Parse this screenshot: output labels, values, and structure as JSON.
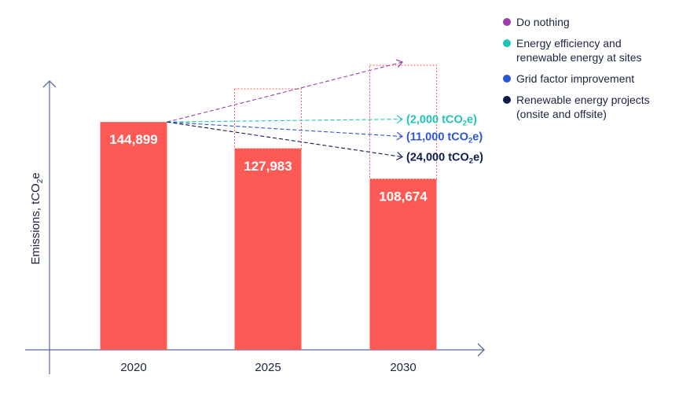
{
  "chart_data": {
    "type": "bar",
    "ylabel": "Emissions, tCO",
    "ylabel_sub": "2",
    "ylabel_suffix": "e",
    "categories": [
      "2020",
      "2025",
      "2030"
    ],
    "values": [
      144899,
      127983,
      108674
    ],
    "value_labels": [
      "144,899",
      "127,983",
      "108,674"
    ],
    "ylim": [
      0,
      175000
    ],
    "colors": {
      "bar": "#fe5a55",
      "axis": "#5b6b9a",
      "text": "#1c2440"
    },
    "projection_boxes": [
      {
        "category": "2025",
        "value": 166000
      },
      {
        "category": "2030",
        "value": 181000
      }
    ],
    "scenarios": [
      {
        "name": "Do nothing",
        "color": "#9b3fa8",
        "end_value": 183000,
        "saving_label": null
      },
      {
        "name": "Energy efficiency and renewable energy at sites",
        "color": "#1fc4b4",
        "end_value": 146700,
        "saving_label": {
          "pre": "(2,000 tCO",
          "sub": "2",
          "post": "e)"
        }
      },
      {
        "name": "Grid factor improvement",
        "color": "#2b55d9",
        "end_value": 135700,
        "saving_label": {
          "pre": "(11,000 tCO",
          "sub": "2",
          "post": "e)"
        }
      },
      {
        "name": "Renewable energy projects (onsite and offsite)",
        "color": "#0e1b4d",
        "end_value": 122700,
        "saving_label": {
          "pre": "(24,000 tCO",
          "sub": "2",
          "post": "e)"
        }
      }
    ],
    "legend": {
      "position": "top-right",
      "items": [
        {
          "lines": [
            "Do nothing"
          ],
          "color": "#9b3fa8"
        },
        {
          "lines": [
            "Energy efficiency and",
            "renewable energy at sites"
          ],
          "color": "#1fc4b4"
        },
        {
          "lines": [
            "Grid factor improvement"
          ],
          "color": "#2b55d9"
        },
        {
          "lines": [
            "Renewable energy projects",
            "(onsite and offsite)"
          ],
          "color": "#0e1b4d"
        }
      ]
    }
  }
}
